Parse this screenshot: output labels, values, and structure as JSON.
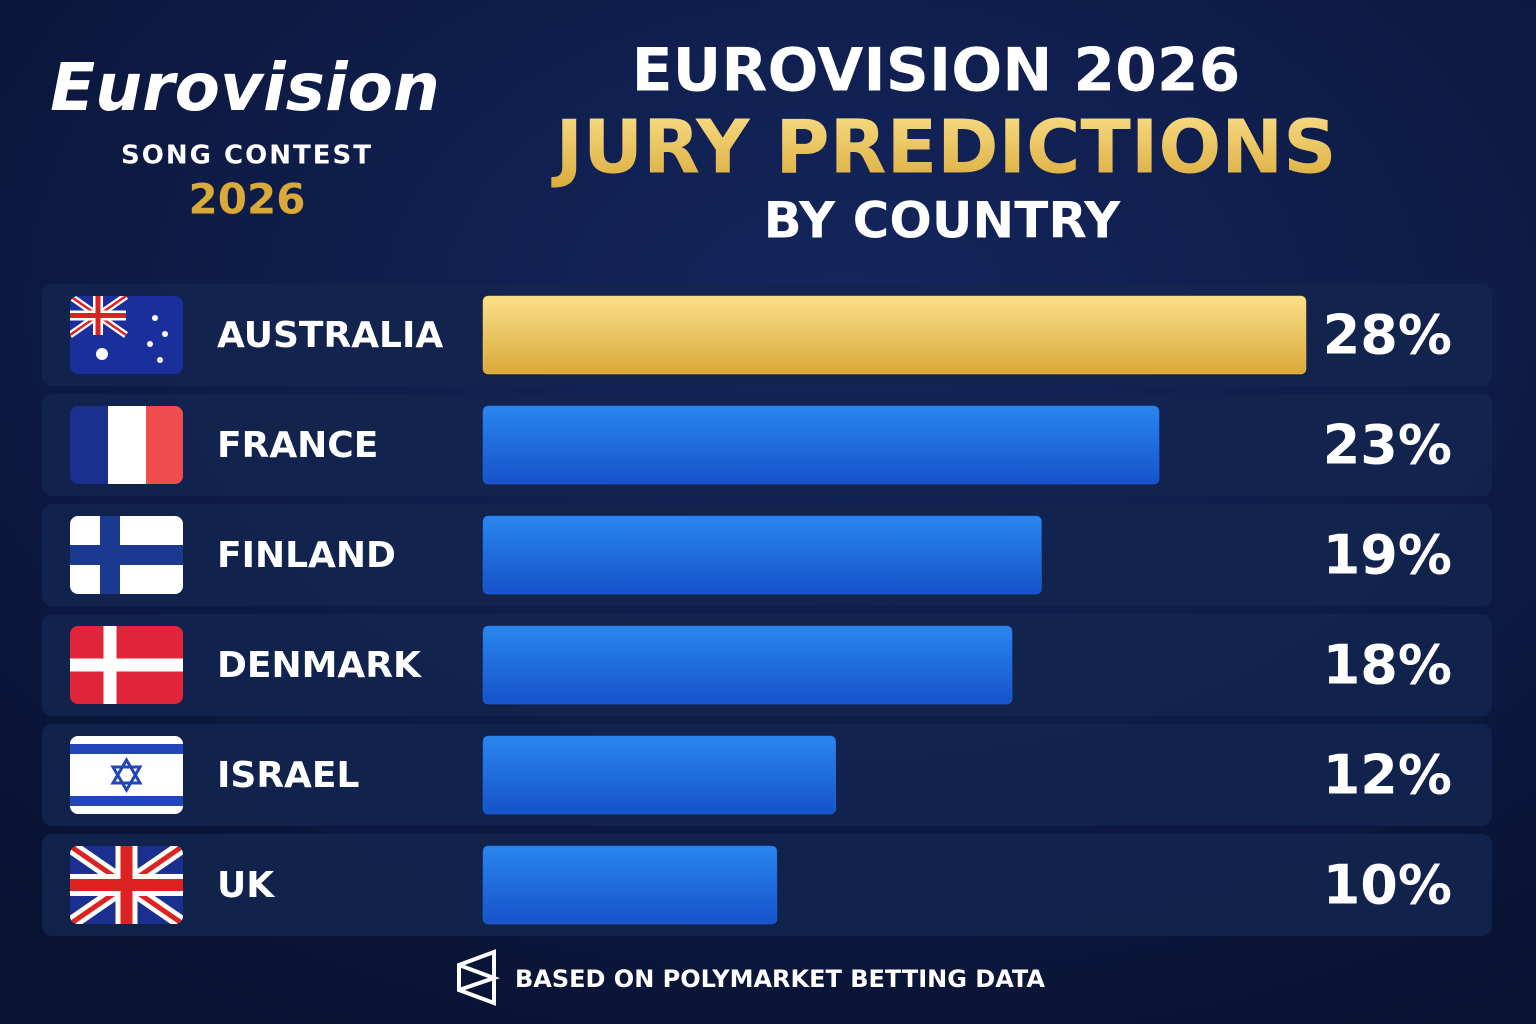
{
  "logo": {
    "name": "Eurovision",
    "subtitle": "SONG CONTEST",
    "year": "2026"
  },
  "chart_data": {
    "type": "bar",
    "orientation": "horizontal",
    "title": "EUROVISION 2026",
    "subtitle": "JURY PREDICTIONS",
    "subtitle2": "BY COUNTRY",
    "categories": [
      "AUSTRALIA",
      "FRANCE",
      "FINLAND",
      "DENMARK",
      "ISRAEL",
      "UK"
    ],
    "values": [
      28,
      23,
      19,
      18,
      12,
      10
    ],
    "value_labels": [
      "28%",
      "23%",
      "19%",
      "18%",
      "12%",
      "10%"
    ],
    "colors": [
      "#f2c94c",
      "#1f6fe0",
      "#1f6fe0",
      "#1f6fe0",
      "#1f6fe0",
      "#1f6fe0"
    ]
  },
  "footer": "BASED ON POLYMARKET BETTING DATA"
}
